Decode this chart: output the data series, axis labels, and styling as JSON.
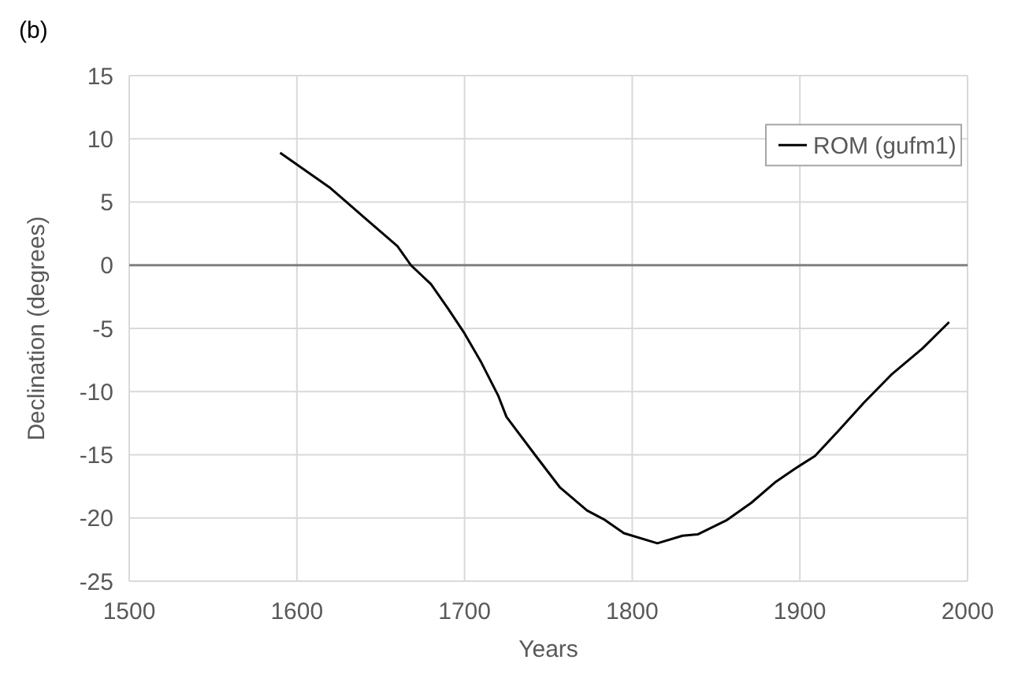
{
  "chart_data": {
    "type": "line",
    "xlabel": "Years",
    "ylabel": "Declination (degrees)",
    "annotations": [
      "(b)"
    ],
    "xlim": [
      1500,
      2000
    ],
    "xticks": [
      1500,
      1600,
      1700,
      1800,
      1900,
      2000
    ],
    "ylim": [
      -25,
      15
    ],
    "yticks": [
      -25,
      -20,
      -15,
      -10,
      -5,
      0,
      5,
      10,
      15
    ],
    "grid": true,
    "legend": "top right",
    "marker": "none",
    "line_style": "solid",
    "ref_lines": [
      {
        "axis": "y",
        "value": 0,
        "color": "#808080"
      }
    ],
    "series": [
      {
        "name": "ROM (gufm1)",
        "color": "#000000",
        "x": [
          1590,
          1620,
          1640,
          1660,
          1668,
          1680,
          1690,
          1700,
          1710,
          1720,
          1725,
          1742,
          1757,
          1773,
          1783,
          1795,
          1815,
          1830,
          1839,
          1856,
          1871,
          1885,
          1897,
          1909,
          1923,
          1938,
          1955,
          1973,
          1989
        ],
        "values": [
          8.9,
          6.1,
          3.8,
          1.5,
          0,
          -1.5,
          -3.4,
          -5.4,
          -7.7,
          -10.3,
          -12.0,
          -15.0,
          -17.6,
          -19.4,
          -20.1,
          -21.2,
          -22.0,
          -21.4,
          -21.3,
          -20.2,
          -18.8,
          -17.2,
          -16.1,
          -15.1,
          -13.1,
          -10.9,
          -8.6,
          -6.6,
          -4.5
        ]
      }
    ]
  }
}
